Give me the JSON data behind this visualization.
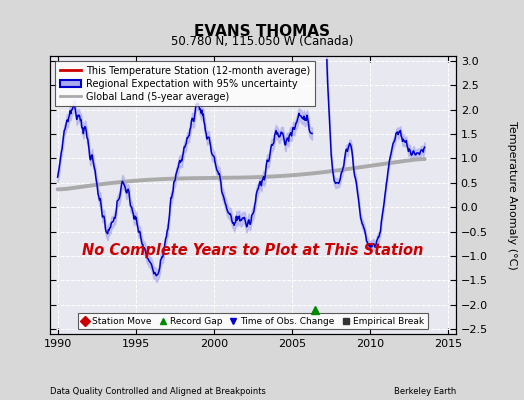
{
  "title": "EVANS THOMAS",
  "subtitle": "50.780 N, 115.050 W (Canada)",
  "ylabel": "Temperature Anomaly (°C)",
  "xlabel_left": "Data Quality Controlled and Aligned at Breakpoints",
  "xlabel_right": "Berkeley Earth",
  "annotation": "No Complete Years to Plot at This Station",
  "xlim": [
    1989.5,
    2015.5
  ],
  "ylim": [
    -2.6,
    3.1
  ],
  "yticks": [
    -2.5,
    -2,
    -1.5,
    -1,
    -0.5,
    0,
    0.5,
    1,
    1.5,
    2,
    2.5,
    3
  ],
  "xticks": [
    1990,
    1995,
    2000,
    2005,
    2010,
    2015
  ],
  "bg_color": "#d8d8d8",
  "plot_bg_color": "#e8e8f0",
  "blue_line_color": "#0000cc",
  "blue_fill_color": "#aaaaee",
  "red_line_color": "#cc0000",
  "gray_line_color": "#aaaaaa",
  "annotation_color": "#cc0000",
  "record_gap_x": 2006.5,
  "record_gap_y": -2.1,
  "gap_start": 2006.3,
  "gap_end": 2007.2
}
